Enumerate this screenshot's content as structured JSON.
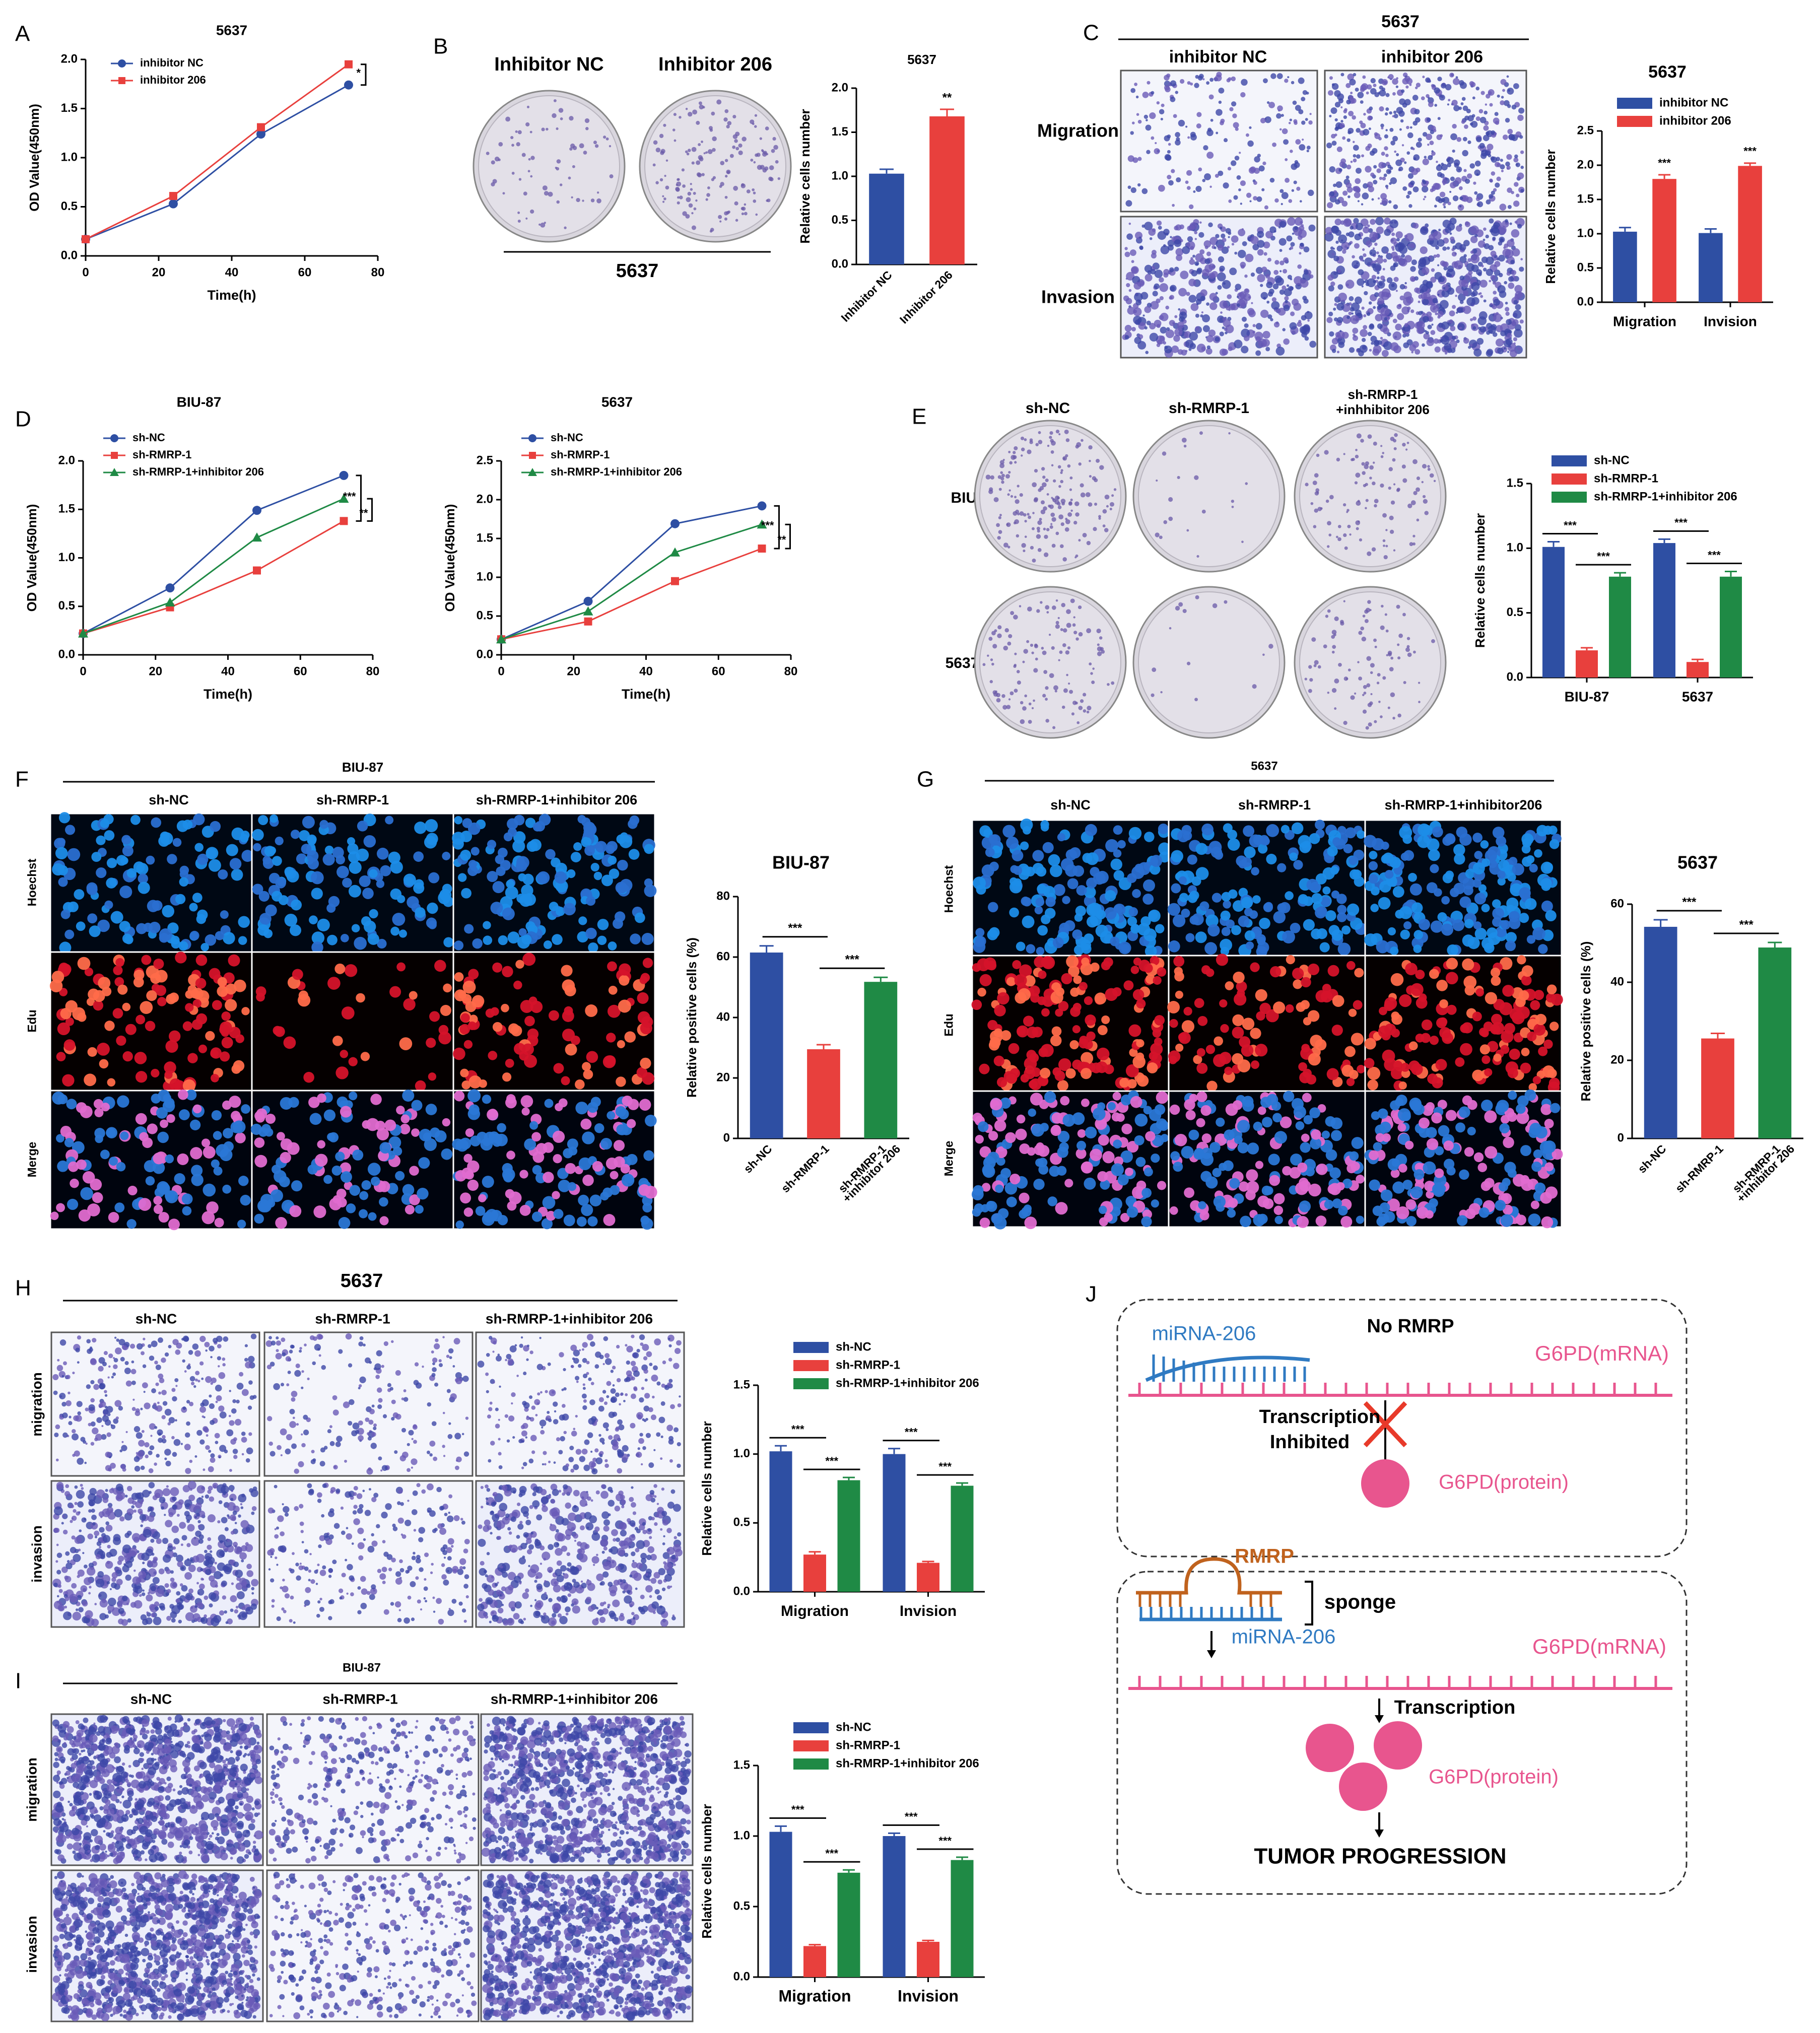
{
  "panels": {
    "A": {
      "letter": "A",
      "title": "5637"
    },
    "B": {
      "letter": "B",
      "col_left": "Inhibitor NC",
      "col_right": "Inhibitor 206",
      "row_label": "5637",
      "chart_title": "5637"
    },
    "C": {
      "letter": "C",
      "top": "5637",
      "col_left": "inhibitor NC",
      "col_right": "inhibitor 206",
      "row1": "Migration",
      "row2": "Invasion",
      "chart_title": "5637"
    },
    "D": {
      "letter": "D",
      "title_left": "BIU-87",
      "title_right": "5637"
    },
    "E": {
      "letter": "E",
      "col1": "sh-NC",
      "col2": "sh-RMRP-1",
      "col3_l1": "sh-RMRP-1",
      "col3_l2": "+inhhibitor 206",
      "row1": "BIU-87",
      "row2": "5637"
    },
    "F": {
      "letter": "F",
      "top": "BIU-87",
      "col1": "sh-NC",
      "col2": "sh-RMRP-1",
      "col3": "sh-RMRP-1+inhibitor 206",
      "row1": "Hoechst",
      "row2": "Edu",
      "row3": "Merge",
      "chart_title": "BIU-87"
    },
    "G": {
      "letter": "G",
      "top": "5637",
      "col1": "sh-NC",
      "col2": "sh-RMRP-1",
      "col3": "sh-RMRP-1+inhibitor206",
      "row1": "Hoechst",
      "row2": "Edu",
      "row3": "Merge",
      "chart_title": "5637"
    },
    "H": {
      "letter": "H",
      "top": "5637",
      "col1": "sh-NC",
      "col2": "sh-RMRP-1",
      "col3": "sh-RMRP-1+inhibitor 206",
      "row1": "migration",
      "row2": "invasion"
    },
    "I": {
      "letter": "I",
      "top": "BIU-87",
      "col1": "sh-NC",
      "col2": "sh-RMRP-1",
      "col3": "sh-RMRP-1+inhibitor 206",
      "row1": "migration",
      "row2": "invasion"
    },
    "J": {
      "letter": "J"
    }
  },
  "diagram": {
    "top": {
      "title": "No RMRP",
      "mirna": "miRNA-206",
      "mrna": "G6PD(mRNA)",
      "transcription": "Transcription",
      "inhibited": "Inhibited",
      "protein": "G6PD(protein)"
    },
    "bottom": {
      "rmrp": "RMRP",
      "sponge": "sponge",
      "mirna": "miRNA-206",
      "mrna": "G6PD(mRNA)",
      "transcription": "Transcription",
      "protein": "G6PD(protein)",
      "outcome": "TUMOR PROGRESSION"
    }
  },
  "colors": {
    "blue": "#2e4fa3",
    "red": "#e8403d",
    "green": "#1f8a45",
    "pink": "#e8558e",
    "orange": "#c0621d",
    "mirna_blue": "#2f7ac2"
  },
  "chart_data": [
    {
      "id": "A",
      "type": "line",
      "title": "",
      "xlabel": "Time(h)",
      "ylabel": "OD Value(450nm)",
      "xlim": [
        0,
        80
      ],
      "ylim": [
        0,
        2.0
      ],
      "xticks": [
        0,
        20,
        40,
        60,
        80
      ],
      "yticks": [
        0.0,
        0.5,
        1.0,
        1.5,
        2.0
      ],
      "series": [
        {
          "name": "inhibitor NC",
          "color": "#2e4fa3",
          "marker": "circle",
          "x": [
            0,
            24,
            48,
            72
          ],
          "y": [
            0.17,
            0.53,
            1.24,
            1.74
          ]
        },
        {
          "name": "inhibitor 206",
          "color": "#e8403d",
          "marker": "square",
          "x": [
            0,
            24,
            48,
            72
          ],
          "y": [
            0.17,
            0.61,
            1.31,
            1.95
          ]
        }
      ],
      "sig": [
        {
          "text": "*",
          "from": 1.74,
          "to": 1.95
        }
      ]
    },
    {
      "id": "B",
      "type": "bar",
      "title": "",
      "xlabel": "",
      "ylabel": "Relative cells number",
      "ylim": [
        0,
        2.0
      ],
      "yticks": [
        0.0,
        0.5,
        1.0,
        1.5,
        2.0
      ],
      "categories": [
        "Inhibitor NC",
        "Inhibitor 206"
      ],
      "series": [
        {
          "name": "",
          "values": [
            1.03,
            1.68
          ],
          "errors": [
            0.05,
            0.08
          ],
          "colors": [
            "#2e4fa3",
            "#e8403d"
          ]
        }
      ],
      "stars": [
        null,
        "**"
      ]
    },
    {
      "id": "C",
      "type": "bar",
      "title": "",
      "xlabel": "",
      "ylabel": "Relative cells number",
      "ylim": [
        0,
        2.5
      ],
      "yticks": [
        0.0,
        0.5,
        1.0,
        1.5,
        2.0,
        2.5
      ],
      "categories": [
        "Migration",
        "Invision"
      ],
      "series": [
        {
          "name": "inhibitor NC",
          "color": "#2e4fa3",
          "values": [
            1.03,
            1.01
          ],
          "errors": [
            0.06,
            0.06
          ]
        },
        {
          "name": "inhibitor 206",
          "color": "#e8403d",
          "values": [
            1.8,
            1.99
          ],
          "errors": [
            0.06,
            0.04
          ],
          "stars": [
            "***",
            "***"
          ]
        }
      ]
    },
    {
      "id": "D1",
      "type": "line",
      "title": "BIU-87",
      "xlabel": "Time(h)",
      "ylabel": "OD Value(450nm)",
      "xlim": [
        0,
        80
      ],
      "ylim": [
        0,
        2.0
      ],
      "xticks": [
        0,
        20,
        40,
        60,
        80
      ],
      "yticks": [
        0.0,
        0.5,
        1.0,
        1.5,
        2.0
      ],
      "series": [
        {
          "name": "sh-NC",
          "color": "#2e4fa3",
          "marker": "circle",
          "x": [
            0,
            24,
            48,
            72
          ],
          "y": [
            0.22,
            0.69,
            1.49,
            1.85
          ]
        },
        {
          "name": "sh-RMRP-1",
          "color": "#e8403d",
          "marker": "square",
          "x": [
            0,
            24,
            48,
            72
          ],
          "y": [
            0.22,
            0.49,
            0.87,
            1.38
          ]
        },
        {
          "name": "sh-RMRP-1+inhibitor 206",
          "color": "#1f8a45",
          "marker": "triangle",
          "x": [
            0,
            24,
            48,
            72
          ],
          "y": [
            0.22,
            0.54,
            1.21,
            1.61
          ]
        }
      ],
      "sig": [
        {
          "text": "***",
          "from": 1.38,
          "to": 1.85
        },
        {
          "text": "**",
          "from": 1.38,
          "to": 1.61
        }
      ]
    },
    {
      "id": "D2",
      "type": "line",
      "title": "5637",
      "xlabel": "Time(h)",
      "ylabel": "OD Value(450nm)",
      "xlim": [
        0,
        80
      ],
      "ylim": [
        0,
        2.5
      ],
      "xticks": [
        0,
        20,
        40,
        60,
        80
      ],
      "yticks": [
        0.0,
        0.5,
        1.0,
        1.5,
        2.0,
        2.5
      ],
      "series": [
        {
          "name": "sh-NC",
          "color": "#2e4fa3",
          "marker": "circle",
          "x": [
            0,
            24,
            48,
            72
          ],
          "y": [
            0.2,
            0.69,
            1.69,
            1.92
          ]
        },
        {
          "name": "sh-RMRP-1",
          "color": "#e8403d",
          "marker": "square",
          "x": [
            0,
            24,
            48,
            72
          ],
          "y": [
            0.2,
            0.43,
            0.95,
            1.37
          ]
        },
        {
          "name": "sh-RMRP-1+inhibitor 206",
          "color": "#1f8a45",
          "marker": "triangle",
          "x": [
            0,
            24,
            48,
            72
          ],
          "y": [
            0.2,
            0.56,
            1.32,
            1.68
          ]
        }
      ],
      "sig": [
        {
          "text": "***",
          "from": 1.37,
          "to": 1.92
        },
        {
          "text": "**",
          "from": 1.37,
          "to": 1.68
        }
      ]
    },
    {
      "id": "E",
      "type": "bar",
      "title": "",
      "xlabel": "",
      "ylabel": "Relative cells number",
      "ylim": [
        0,
        1.5
      ],
      "yticks": [
        0.0,
        0.5,
        1.0,
        1.5
      ],
      "categories": [
        "BIU-87",
        "5637"
      ],
      "series": [
        {
          "name": "sh-NC",
          "color": "#2e4fa3",
          "values": [
            1.01,
            1.04
          ],
          "errors": [
            0.04,
            0.03
          ]
        },
        {
          "name": "sh-RMRP-1",
          "color": "#e8403d",
          "values": [
            0.21,
            0.12
          ],
          "errors": [
            0.02,
            0.02
          ]
        },
        {
          "name": "sh-RMRP-1+inhibitor 206",
          "color": "#1f8a45",
          "values": [
            0.78,
            0.78
          ],
          "errors": [
            0.03,
            0.04
          ]
        }
      ],
      "sig": [
        "***",
        "***"
      ]
    },
    {
      "id": "F",
      "type": "bar",
      "title": "",
      "xlabel": "",
      "ylabel": "Relative positive cells (%)",
      "ylim": [
        0,
        80
      ],
      "yticks": [
        0,
        20,
        40,
        60,
        80
      ],
      "categories": [
        "sh-NC",
        "sh-RMRP-1",
        "sh-RMRP-1\n+inhibitor 206"
      ],
      "series": [
        {
          "name": "",
          "values": [
            61.5,
            29.5,
            51.8
          ],
          "errors": [
            2.2,
            1.5,
            1.5
          ],
          "colors": [
            "#2e4fa3",
            "#e8403d",
            "#1f8a45"
          ]
        }
      ],
      "sig": [
        "***",
        "***"
      ]
    },
    {
      "id": "G",
      "type": "bar",
      "title": "",
      "xlabel": "",
      "ylabel": "Relative positive cells (%)",
      "ylim": [
        0,
        60
      ],
      "yticks": [
        0,
        20,
        40,
        60
      ],
      "categories": [
        "sh-NC",
        "sh-RMRP-1",
        "sh-RMRP-1\n+inhibitor 206"
      ],
      "series": [
        {
          "name": "",
          "values": [
            54.2,
            25.6,
            48.9
          ],
          "errors": [
            1.8,
            1.3,
            1.3
          ],
          "colors": [
            "#2e4fa3",
            "#e8403d",
            "#1f8a45"
          ]
        }
      ],
      "sig": [
        "***",
        "***"
      ]
    },
    {
      "id": "H",
      "type": "bar",
      "title": "",
      "xlabel": "",
      "ylabel": "Relative cells number",
      "ylim": [
        0,
        1.5
      ],
      "yticks": [
        0.0,
        0.5,
        1.0,
        1.5
      ],
      "categories": [
        "Migration",
        "Invision"
      ],
      "series": [
        {
          "name": "sh-NC",
          "color": "#2e4fa3",
          "values": [
            1.02,
            1.0
          ],
          "errors": [
            0.04,
            0.04
          ]
        },
        {
          "name": "sh-RMRP-1",
          "color": "#e8403d",
          "values": [
            0.27,
            0.21
          ],
          "errors": [
            0.02,
            0.01
          ]
        },
        {
          "name": "sh-RMRP-1+inhibitor 206",
          "color": "#1f8a45",
          "values": [
            0.81,
            0.77
          ],
          "errors": [
            0.02,
            0.02
          ]
        }
      ],
      "sig": [
        "***",
        "***"
      ]
    },
    {
      "id": "I",
      "type": "bar",
      "title": "",
      "xlabel": "",
      "ylabel": "Relative cells number",
      "ylim": [
        0,
        1.5
      ],
      "yticks": [
        0.0,
        0.5,
        1.0,
        1.5
      ],
      "categories": [
        "Migration",
        "Invision"
      ],
      "series": [
        {
          "name": "sh-NC",
          "color": "#2e4fa3",
          "values": [
            1.03,
            1.0
          ],
          "errors": [
            0.04,
            0.02
          ]
        },
        {
          "name": "sh-RMRP-1",
          "color": "#e8403d",
          "values": [
            0.22,
            0.25
          ],
          "errors": [
            0.01,
            0.01
          ]
        },
        {
          "name": "sh-RMRP-1+inhibitor 206",
          "color": "#1f8a45",
          "values": [
            0.74,
            0.83
          ],
          "errors": [
            0.02,
            0.02
          ]
        }
      ],
      "sig": [
        "***",
        "***"
      ]
    }
  ]
}
